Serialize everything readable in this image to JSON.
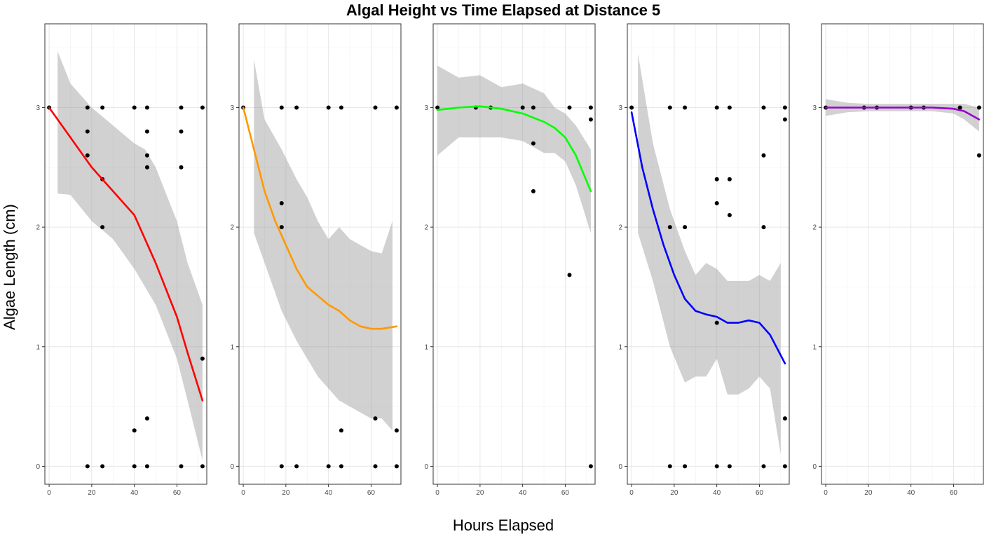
{
  "chart_data": {
    "type": "scatter",
    "title": "Algal Height vs Time Elapsed at Distance 5",
    "xlabel": "Hours Elapsed",
    "ylabel": "Algae Length (cm)",
    "xlim": [
      -2,
      74
    ],
    "ylim": [
      -0.15,
      3.7
    ],
    "x_ticks": [
      0,
      20,
      40,
      60
    ],
    "y_ticks": [
      0,
      1,
      2,
      3
    ],
    "grid": true,
    "panels": [
      {
        "color": "#ff0000",
        "points": [
          [
            0,
            3
          ],
          [
            18,
            3
          ],
          [
            18,
            2.8
          ],
          [
            18,
            2.6
          ],
          [
            18,
            0
          ],
          [
            25,
            3
          ],
          [
            25,
            2.4
          ],
          [
            25,
            2
          ],
          [
            25,
            0
          ],
          [
            40,
            3
          ],
          [
            40,
            0.3
          ],
          [
            40,
            0
          ],
          [
            46,
            3
          ],
          [
            46,
            2.8
          ],
          [
            46,
            2.6
          ],
          [
            46,
            2.5
          ],
          [
            46,
            0.4
          ],
          [
            46,
            0
          ],
          [
            62,
            3
          ],
          [
            62,
            2.8
          ],
          [
            62,
            2.5
          ],
          [
            62,
            0
          ],
          [
            72,
            3
          ],
          [
            72,
            0.9
          ],
          [
            72,
            0
          ]
        ],
        "smooth": [
          [
            0,
            3
          ],
          [
            10,
            2.75
          ],
          [
            20,
            2.5
          ],
          [
            30,
            2.3
          ],
          [
            40,
            2.1
          ],
          [
            50,
            1.7
          ],
          [
            60,
            1.25
          ],
          [
            65,
            0.95
          ],
          [
            72,
            0.55
          ]
        ],
        "band_upper": [
          [
            4,
            3.47
          ],
          [
            10,
            3.2
          ],
          [
            20,
            3.0
          ],
          [
            30,
            2.85
          ],
          [
            40,
            2.7
          ],
          [
            45,
            2.65
          ],
          [
            50,
            2.5
          ],
          [
            60,
            2.05
          ],
          [
            65,
            1.7
          ],
          [
            72,
            1.35
          ]
        ],
        "band_lower": [
          [
            4,
            2.28
          ],
          [
            10,
            2.27
          ],
          [
            20,
            2.05
          ],
          [
            30,
            1.9
          ],
          [
            40,
            1.65
          ],
          [
            50,
            1.35
          ],
          [
            60,
            0.9
          ],
          [
            65,
            0.55
          ],
          [
            72,
            0.05
          ]
        ]
      },
      {
        "color": "#ff9900",
        "points": [
          [
            0,
            3
          ],
          [
            18,
            3
          ],
          [
            18,
            2.2
          ],
          [
            18,
            2
          ],
          [
            18,
            0
          ],
          [
            25,
            3
          ],
          [
            25,
            0
          ],
          [
            40,
            3
          ],
          [
            40,
            0
          ],
          [
            46,
            3
          ],
          [
            46,
            0.3
          ],
          [
            46,
            0
          ],
          [
            62,
            3
          ],
          [
            62,
            0.4
          ],
          [
            62,
            0
          ],
          [
            72,
            3
          ],
          [
            72,
            0.3
          ],
          [
            72,
            0
          ]
        ],
        "smooth": [
          [
            0,
            3
          ],
          [
            5,
            2.65
          ],
          [
            10,
            2.3
          ],
          [
            15,
            2.05
          ],
          [
            20,
            1.85
          ],
          [
            25,
            1.65
          ],
          [
            30,
            1.5
          ],
          [
            40,
            1.35
          ],
          [
            45,
            1.3
          ],
          [
            50,
            1.22
          ],
          [
            55,
            1.17
          ],
          [
            60,
            1.15
          ],
          [
            65,
            1.15
          ],
          [
            72,
            1.17
          ]
        ],
        "band_upper": [
          [
            5,
            3.4
          ],
          [
            10,
            2.9
          ],
          [
            18,
            2.65
          ],
          [
            25,
            2.4
          ],
          [
            30,
            2.25
          ],
          [
            35,
            2.05
          ],
          [
            40,
            1.9
          ],
          [
            45,
            2.0
          ],
          [
            50,
            1.9
          ],
          [
            55,
            1.85
          ],
          [
            60,
            1.8
          ],
          [
            65,
            1.78
          ],
          [
            70,
            2.05
          ]
        ],
        "band_lower": [
          [
            5,
            1.95
          ],
          [
            10,
            1.7
          ],
          [
            18,
            1.3
          ],
          [
            25,
            1.05
          ],
          [
            30,
            0.9
          ],
          [
            35,
            0.75
          ],
          [
            40,
            0.65
          ],
          [
            45,
            0.55
          ],
          [
            50,
            0.5
          ],
          [
            55,
            0.45
          ],
          [
            60,
            0.4
          ],
          [
            65,
            0.4
          ],
          [
            70,
            0.3
          ]
        ]
      },
      {
        "color": "#00ff00",
        "points": [
          [
            0,
            3
          ],
          [
            18,
            3
          ],
          [
            25,
            3
          ],
          [
            40,
            3
          ],
          [
            45,
            3
          ],
          [
            45,
            2.7
          ],
          [
            45,
            2.3
          ],
          [
            62,
            3
          ],
          [
            62,
            1.6
          ],
          [
            72,
            3
          ],
          [
            72,
            2.9
          ],
          [
            72,
            0
          ]
        ],
        "smooth": [
          [
            0,
            2.98
          ],
          [
            10,
            3.0
          ],
          [
            20,
            3.01
          ],
          [
            30,
            2.99
          ],
          [
            40,
            2.95
          ],
          [
            50,
            2.88
          ],
          [
            55,
            2.83
          ],
          [
            60,
            2.75
          ],
          [
            65,
            2.6
          ],
          [
            72,
            2.3
          ]
        ],
        "band_upper": [
          [
            0,
            3.35
          ],
          [
            10,
            3.25
          ],
          [
            20,
            3.27
          ],
          [
            30,
            3.17
          ],
          [
            40,
            3.2
          ],
          [
            50,
            3.12
          ],
          [
            55,
            3.0
          ],
          [
            60,
            2.95
          ],
          [
            65,
            2.85
          ],
          [
            72,
            2.65
          ]
        ],
        "band_lower": [
          [
            0,
            2.6
          ],
          [
            10,
            2.75
          ],
          [
            20,
            2.75
          ],
          [
            30,
            2.75
          ],
          [
            40,
            2.72
          ],
          [
            50,
            2.62
          ],
          [
            55,
            2.62
          ],
          [
            60,
            2.55
          ],
          [
            65,
            2.35
          ],
          [
            72,
            1.95
          ]
        ]
      },
      {
        "color": "#0000ff",
        "points": [
          [
            0,
            3
          ],
          [
            18,
            3
          ],
          [
            18,
            2
          ],
          [
            18,
            0
          ],
          [
            25,
            3
          ],
          [
            25,
            2
          ],
          [
            25,
            0
          ],
          [
            40,
            3
          ],
          [
            40,
            2.4
          ],
          [
            40,
            2.2
          ],
          [
            40,
            1.2
          ],
          [
            40,
            0
          ],
          [
            46,
            3
          ],
          [
            46,
            2.4
          ],
          [
            46,
            2.1
          ],
          [
            46,
            0
          ],
          [
            62,
            3
          ],
          [
            62,
            2.6
          ],
          [
            62,
            2
          ],
          [
            62,
            0
          ],
          [
            72,
            3
          ],
          [
            72,
            2.9
          ],
          [
            72,
            0.4
          ],
          [
            72,
            0
          ]
        ],
        "smooth": [
          [
            0,
            2.96
          ],
          [
            5,
            2.5
          ],
          [
            10,
            2.15
          ],
          [
            15,
            1.85
          ],
          [
            20,
            1.6
          ],
          [
            25,
            1.4
          ],
          [
            30,
            1.3
          ],
          [
            35,
            1.27
          ],
          [
            40,
            1.25
          ],
          [
            45,
            1.2
          ],
          [
            50,
            1.2
          ],
          [
            55,
            1.22
          ],
          [
            60,
            1.2
          ],
          [
            65,
            1.1
          ],
          [
            72,
            0.86
          ]
        ],
        "band_upper": [
          [
            3,
            3.45
          ],
          [
            10,
            2.7
          ],
          [
            18,
            2.15
          ],
          [
            25,
            1.8
          ],
          [
            30,
            1.6
          ],
          [
            35,
            1.7
          ],
          [
            40,
            1.65
          ],
          [
            45,
            1.55
          ],
          [
            50,
            1.55
          ],
          [
            55,
            1.55
          ],
          [
            60,
            1.6
          ],
          [
            65,
            1.55
          ],
          [
            70,
            1.7
          ]
        ],
        "band_lower": [
          [
            3,
            1.95
          ],
          [
            10,
            1.55
          ],
          [
            18,
            1.0
          ],
          [
            25,
            0.7
          ],
          [
            30,
            0.75
          ],
          [
            35,
            0.75
          ],
          [
            40,
            0.9
          ],
          [
            45,
            0.6
          ],
          [
            50,
            0.6
          ],
          [
            55,
            0.65
          ],
          [
            60,
            0.75
          ],
          [
            65,
            0.65
          ],
          [
            70,
            0.1
          ]
        ]
      },
      {
        "color": "#9900cc",
        "points": [
          [
            0,
            3
          ],
          [
            18,
            3
          ],
          [
            24,
            3
          ],
          [
            40,
            3
          ],
          [
            46,
            3
          ],
          [
            63,
            3
          ],
          [
            72,
            3
          ],
          [
            72,
            2.6
          ]
        ],
        "smooth": [
          [
            0,
            3
          ],
          [
            10,
            3
          ],
          [
            20,
            3
          ],
          [
            30,
            3
          ],
          [
            40,
            3
          ],
          [
            50,
            3
          ],
          [
            60,
            2.99
          ],
          [
            65,
            2.97
          ],
          [
            72,
            2.9
          ]
        ],
        "band_upper": [
          [
            0,
            3.07
          ],
          [
            10,
            3.04
          ],
          [
            20,
            3.03
          ],
          [
            30,
            3.03
          ],
          [
            40,
            3.03
          ],
          [
            50,
            3.03
          ],
          [
            60,
            3.03
          ],
          [
            65,
            3.03
          ],
          [
            72,
            3.0
          ]
        ],
        "band_lower": [
          [
            0,
            2.93
          ],
          [
            10,
            2.96
          ],
          [
            20,
            2.97
          ],
          [
            30,
            2.97
          ],
          [
            40,
            2.97
          ],
          [
            50,
            2.97
          ],
          [
            60,
            2.95
          ],
          [
            65,
            2.9
          ],
          [
            72,
            2.8
          ]
        ]
      }
    ]
  }
}
